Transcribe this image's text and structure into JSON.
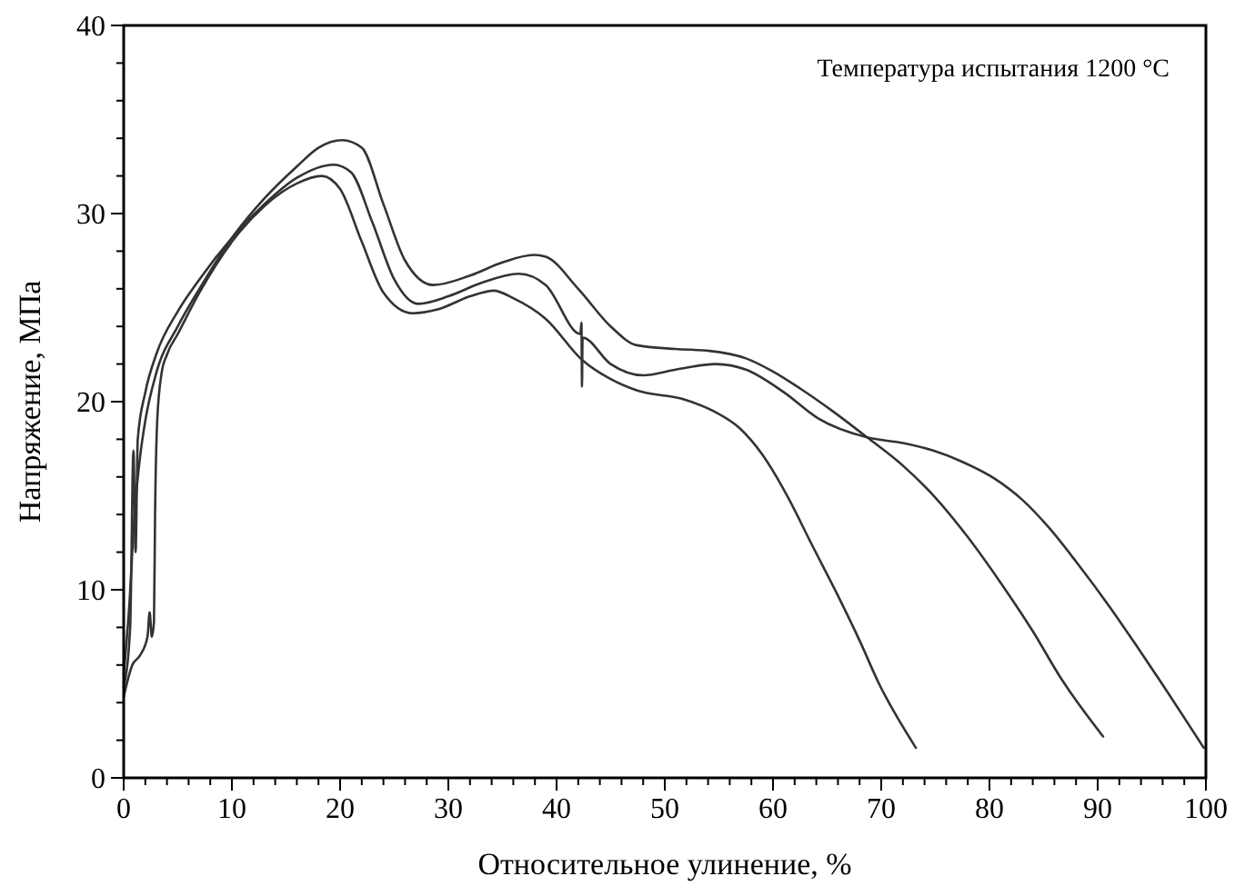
{
  "chart_data": {
    "type": "line",
    "xlabel": "Относительное улинение, %",
    "ylabel": "Напряжение, МПа",
    "annotations": [
      "Температура испытания 1200 °C"
    ],
    "xlim": [
      0,
      100
    ],
    "ylim": [
      0,
      40
    ],
    "xticks": [
      0,
      {
        "value": 2,
        "label": null
      },
      {
        "value": 4,
        "label": null
      },
      {
        "value": 6,
        "label": null
      },
      {
        "value": 8,
        "label": null
      },
      10,
      {
        "value": 12,
        "label": null
      },
      {
        "value": 14,
        "label": null
      },
      {
        "value": 16,
        "label": null
      },
      {
        "value": 18,
        "label": null
      },
      20,
      {
        "value": 22,
        "label": null
      },
      {
        "value": 24,
        "label": null
      },
      {
        "value": 26,
        "label": null
      },
      {
        "value": 28,
        "label": null
      },
      30,
      {
        "value": 32,
        "label": null
      },
      {
        "value": 34,
        "label": null
      },
      {
        "value": 36,
        "label": null
      },
      {
        "value": 38,
        "label": null
      },
      40,
      {
        "value": 42,
        "label": null
      },
      {
        "value": 44,
        "label": null
      },
      {
        "value": 46,
        "label": null
      },
      {
        "value": 48,
        "label": null
      },
      50,
      {
        "value": 52,
        "label": null
      },
      {
        "value": 54,
        "label": null
      },
      {
        "value": 56,
        "label": null
      },
      {
        "value": 58,
        "label": null
      },
      60,
      {
        "value": 62,
        "label": null
      },
      {
        "value": 64,
        "label": null
      },
      {
        "value": 66,
        "label": null
      },
      {
        "value": 68,
        "label": null
      },
      70,
      {
        "value": 72,
        "label": null
      },
      {
        "value": 74,
        "label": null
      },
      {
        "value": 76,
        "label": null
      },
      {
        "value": 78,
        "label": null
      },
      80,
      {
        "value": 82,
        "label": null
      },
      {
        "value": 84,
        "label": null
      },
      {
        "value": 86,
        "label": null
      },
      {
        "value": 88,
        "label": null
      },
      90,
      {
        "value": 92,
        "label": null
      },
      {
        "value": 94,
        "label": null
      },
      {
        "value": 96,
        "label": null
      },
      {
        "value": 98,
        "label": null
      },
      100
    ],
    "yticks": [
      0,
      {
        "value": 2,
        "label": null
      },
      {
        "value": 4,
        "label": null
      },
      {
        "value": 6,
        "label": null
      },
      {
        "value": 8,
        "label": null
      },
      10,
      {
        "value": 12,
        "label": null
      },
      {
        "value": 14,
        "label": null
      },
      {
        "value": 16,
        "label": null
      },
      {
        "value": 18,
        "label": null
      },
      20,
      {
        "value": 22,
        "label": null
      },
      {
        "value": 24,
        "label": null
      },
      {
        "value": 26,
        "label": null
      },
      {
        "value": 28,
        "label": null
      },
      30,
      {
        "value": 32,
        "label": null
      },
      {
        "value": 34,
        "label": null
      },
      {
        "value": 36,
        "label": null
      },
      {
        "value": 38,
        "label": null
      },
      40
    ],
    "grid": false,
    "marker": "none",
    "line_style": "solid",
    "series": [
      {
        "color": "#333333",
        "x": [
          0,
          0.5,
          1,
          1.5,
          2,
          3,
          5,
          7,
          10,
          13,
          16,
          18,
          20.2,
          22,
          24,
          26,
          28.6,
          32,
          35,
          37.9,
          39,
          42,
          45,
          47.4,
          51,
          54.1,
          57.5,
          60,
          62.5,
          65.5,
          68.7,
          72,
          75,
          78,
          81,
          84,
          86.6,
          90.5
        ],
        "values": [
          5.5,
          9,
          14,
          17,
          19,
          21.5,
          24,
          26,
          28.7,
          30.8,
          32.5,
          33.5,
          33.9,
          33.5,
          30.5,
          27.5,
          26.2,
          26.7,
          27.4,
          27.8,
          27.7,
          26,
          24,
          23,
          22.8,
          22.7,
          22.3,
          21.6,
          20.7,
          19.5,
          18.1,
          16.6,
          14.9,
          12.8,
          10.4,
          7.8,
          5.3,
          2.2
        ]
      },
      {
        "color": "#333333",
        "x": [
          0,
          0.6,
          0.9,
          1.1,
          1.3,
          2,
          3,
          5,
          7,
          10,
          13,
          16,
          19.4,
          21,
          23,
          25,
          27.2,
          30,
          33,
          36.5,
          39,
          42.2,
          42.3,
          42.35,
          42.4,
          45,
          48,
          51,
          54.7,
          57.5,
          61,
          64.2,
          68.7,
          72,
          74.8,
          77.5,
          80.5,
          83,
          85.5,
          88,
          91.1,
          93.5,
          95.6,
          99.8
        ],
        "values": [
          4.8,
          8,
          17.4,
          12,
          18,
          20.5,
          22.5,
          24.8,
          26.5,
          28.7,
          30.5,
          31.9,
          32.6,
          32.2,
          29.5,
          26.5,
          25.2,
          25.6,
          26.3,
          26.8,
          26.2,
          23.6,
          24.2,
          20.8,
          23.4,
          22,
          21.4,
          21.7,
          22,
          21.7,
          20.5,
          19.1,
          18.1,
          17.8,
          17.4,
          16.8,
          15.9,
          14.8,
          13.3,
          11.5,
          9.1,
          7.1,
          5.3,
          1.6
        ]
      },
      {
        "color": "#333333",
        "x": [
          0,
          0.8,
          1.5,
          2.2,
          2.4,
          2.6,
          2.8,
          2.9,
          3.1,
          3.5,
          4,
          5,
          7,
          10,
          13,
          16,
          18.3,
          20,
          22,
          24,
          26.7,
          29,
          32,
          34.2,
          36,
          39,
          42.4,
          45,
          47.4,
          51.9,
          54.5,
          56.9,
          59,
          61.4,
          63.5,
          65.9,
          68,
          69.8,
          73.2
        ],
        "values": [
          4.3,
          6,
          6.5,
          7.5,
          8.8,
          7.5,
          8.3,
          14,
          19,
          21.5,
          22.5,
          23.6,
          25.8,
          28.5,
          30.4,
          31.6,
          32,
          31.3,
          28.5,
          25.8,
          24.7,
          24.9,
          25.6,
          25.9,
          25.5,
          24.4,
          22.2,
          21.2,
          20.6,
          20.1,
          19.5,
          18.6,
          17.2,
          14.9,
          12.5,
          9.8,
          7.3,
          5,
          1.6
        ]
      }
    ]
  }
}
